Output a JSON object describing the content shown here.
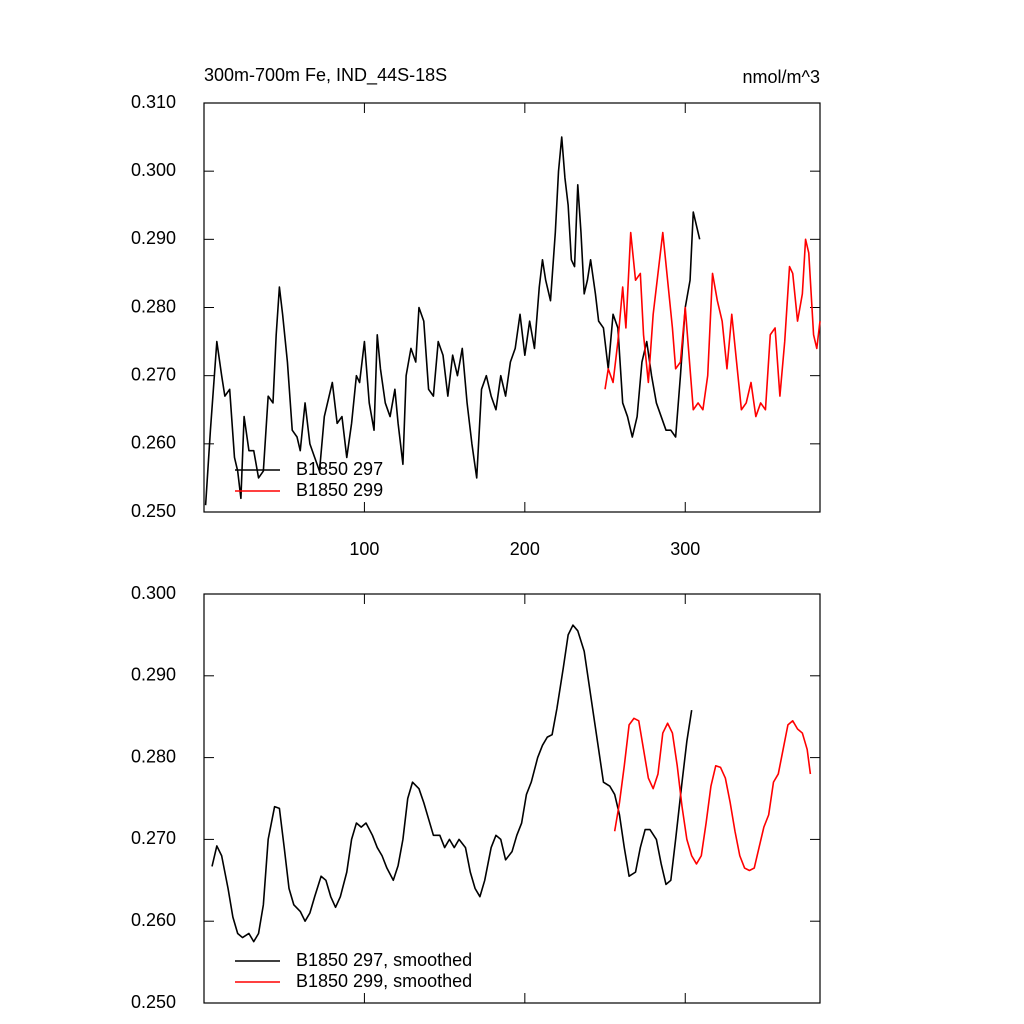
{
  "chart_data": [
    {
      "type": "line",
      "title": "300m-700m Fe, IND_44S-18S",
      "units": "nmol/m^3",
      "xlim": [
        0,
        384
      ],
      "xticks": [
        100,
        200,
        300
      ],
      "ylim": [
        0.25,
        0.31
      ],
      "yticks": [
        {
          "value": 0.25,
          "label": "0.250"
        },
        {
          "value": 0.26,
          "label": "0.260"
        },
        {
          "value": 0.27,
          "label": "0.270"
        },
        {
          "value": 0.28,
          "label": "0.280"
        },
        {
          "value": 0.29,
          "label": "0.290"
        },
        {
          "value": 0.3,
          "label": "0.300"
        },
        {
          "value": 0.31,
          "label": "0.310"
        }
      ],
      "legend": "lower left",
      "series": [
        {
          "name": "B1850 297",
          "color": "#000000",
          "x": [
            1,
            4,
            8,
            11,
            13,
            16,
            19,
            21,
            23,
            25,
            28,
            31,
            34,
            37,
            40,
            43,
            45,
            47,
            49,
            52,
            55,
            58,
            60,
            63,
            66,
            69,
            72,
            75,
            78,
            80,
            83,
            86,
            89,
            92,
            95,
            97,
            100,
            103,
            106,
            108,
            110,
            113,
            116,
            119,
            121,
            124,
            126,
            129,
            132,
            134,
            137,
            140,
            143,
            146,
            149,
            152,
            155,
            158,
            161,
            164,
            167,
            170,
            173,
            176,
            179,
            182,
            185,
            188,
            191,
            194,
            197,
            200,
            203,
            206,
            209,
            211,
            213,
            216,
            219,
            221,
            223,
            225,
            227,
            229,
            231,
            233,
            235,
            237,
            239,
            241,
            244,
            246,
            249,
            252,
            255,
            258,
            261,
            264,
            267,
            270,
            273,
            276,
            279,
            282,
            285,
            288,
            291,
            294,
            297,
            300,
            303,
            305,
            307,
            309
          ],
          "values": [
            0.251,
            0.262,
            0.275,
            0.27,
            0.267,
            0.268,
            0.258,
            0.256,
            0.252,
            0.264,
            0.259,
            0.259,
            0.255,
            0.256,
            0.267,
            0.266,
            0.276,
            0.283,
            0.279,
            0.272,
            0.262,
            0.261,
            0.259,
            0.266,
            0.26,
            0.258,
            0.256,
            0.264,
            0.267,
            0.269,
            0.263,
            0.264,
            0.258,
            0.263,
            0.27,
            0.269,
            0.275,
            0.266,
            0.262,
            0.276,
            0.271,
            0.266,
            0.264,
            0.268,
            0.263,
            0.257,
            0.27,
            0.274,
            0.272,
            0.28,
            0.278,
            0.268,
            0.267,
            0.275,
            0.273,
            0.267,
            0.273,
            0.27,
            0.274,
            0.266,
            0.26,
            0.255,
            0.268,
            0.27,
            0.267,
            0.265,
            0.27,
            0.267,
            0.272,
            0.274,
            0.279,
            0.273,
            0.278,
            0.274,
            0.283,
            0.287,
            0.284,
            0.281,
            0.291,
            0.3,
            0.305,
            0.299,
            0.295,
            0.287,
            0.286,
            0.298,
            0.291,
            0.282,
            0.284,
            0.287,
            0.282,
            0.278,
            0.277,
            0.271,
            0.279,
            0.277,
            0.266,
            0.264,
            0.261,
            0.264,
            0.272,
            0.275,
            0.27,
            0.266,
            0.264,
            0.262,
            0.262,
            0.261,
            0.27,
            0.28,
            0.284,
            0.294,
            0.292,
            0.29
          ]
        },
        {
          "name": "B1850 299",
          "color": "#ff0000",
          "x": [
            250,
            252,
            255,
            258,
            261,
            263,
            266,
            269,
            272,
            274,
            277,
            280,
            283,
            286,
            289,
            292,
            294,
            297,
            300,
            302,
            305,
            308,
            311,
            314,
            317,
            320,
            323,
            326,
            329,
            332,
            335,
            338,
            341,
            344,
            347,
            350,
            353,
            356,
            359,
            362,
            365,
            367,
            370,
            373,
            375,
            377,
            380,
            382,
            384
          ],
          "values": [
            0.268,
            0.271,
            0.269,
            0.275,
            0.283,
            0.277,
            0.291,
            0.284,
            0.285,
            0.276,
            0.269,
            0.279,
            0.285,
            0.291,
            0.284,
            0.277,
            0.271,
            0.272,
            0.28,
            0.274,
            0.265,
            0.266,
            0.265,
            0.27,
            0.285,
            0.281,
            0.278,
            0.271,
            0.279,
            0.272,
            0.265,
            0.266,
            0.269,
            0.264,
            0.266,
            0.265,
            0.276,
            0.277,
            0.267,
            0.275,
            0.286,
            0.285,
            0.278,
            0.282,
            0.29,
            0.288,
            0.276,
            0.274,
            0.278
          ]
        }
      ]
    },
    {
      "type": "line",
      "xlim": [
        0,
        384
      ],
      "ylim": [
        0.25,
        0.3
      ],
      "yticks": [
        {
          "value": 0.25,
          "label": "0.250"
        },
        {
          "value": 0.26,
          "label": "0.260"
        },
        {
          "value": 0.27,
          "label": "0.270"
        },
        {
          "value": 0.28,
          "label": "0.280"
        },
        {
          "value": 0.29,
          "label": "0.290"
        },
        {
          "value": 0.3,
          "label": "0.300"
        }
      ],
      "legend": "lower left",
      "series": [
        {
          "name": "B1850 297, smoothed",
          "color": "#000000",
          "x": [
            5,
            8,
            11,
            15,
            18,
            21,
            24,
            28,
            31,
            34,
            37,
            40,
            44,
            47,
            50,
            53,
            56,
            60,
            63,
            66,
            69,
            73,
            76,
            79,
            82,
            85,
            89,
            92,
            95,
            98,
            101,
            105,
            108,
            111,
            114,
            118,
            121,
            124,
            127,
            130,
            134,
            137,
            140,
            143,
            147,
            150,
            153,
            156,
            159,
            163,
            166,
            169,
            172,
            175,
            179,
            182,
            185,
            188,
            192,
            195,
            198,
            201,
            204,
            208,
            211,
            214,
            217,
            220,
            224,
            227,
            230,
            233,
            237,
            240,
            243,
            246,
            249,
            253,
            256,
            259,
            262,
            265,
            269,
            272,
            275,
            278,
            282,
            285,
            288,
            291,
            294,
            298,
            301,
            304
          ],
          "values": [
            0.2667,
            0.2692,
            0.268,
            0.264,
            0.2605,
            0.2585,
            0.258,
            0.2585,
            0.2575,
            0.2585,
            0.262,
            0.27,
            0.274,
            0.2738,
            0.269,
            0.264,
            0.262,
            0.2612,
            0.26,
            0.261,
            0.263,
            0.2655,
            0.265,
            0.263,
            0.2617,
            0.263,
            0.266,
            0.27,
            0.272,
            0.2715,
            0.272,
            0.2705,
            0.269,
            0.268,
            0.2665,
            0.265,
            0.2668,
            0.27,
            0.275,
            0.277,
            0.2762,
            0.2745,
            0.2725,
            0.2705,
            0.2705,
            0.269,
            0.27,
            0.269,
            0.27,
            0.269,
            0.266,
            0.264,
            0.263,
            0.265,
            0.269,
            0.2705,
            0.27,
            0.2675,
            0.2685,
            0.2705,
            0.272,
            0.2755,
            0.277,
            0.28,
            0.2815,
            0.2825,
            0.2828,
            0.286,
            0.291,
            0.295,
            0.2962,
            0.2955,
            0.293,
            0.289,
            0.285,
            0.281,
            0.277,
            0.2765,
            0.2755,
            0.273,
            0.269,
            0.2655,
            0.266,
            0.269,
            0.2712,
            0.2712,
            0.27,
            0.267,
            0.2645,
            0.265,
            0.27,
            0.277,
            0.282,
            0.2858
          ]
        },
        {
          "name": "B1850 299, smoothed",
          "color": "#ff0000",
          "x": [
            256,
            259,
            262,
            265,
            268,
            271,
            274,
            277,
            280,
            283,
            286,
            289,
            292,
            295,
            298,
            301,
            304,
            307,
            310,
            313,
            316,
            319,
            322,
            325,
            328,
            331,
            334,
            337,
            340,
            343,
            346,
            349,
            352,
            355,
            358,
            361,
            364,
            367,
            370,
            373,
            376,
            378
          ],
          "values": [
            0.271,
            0.2745,
            0.279,
            0.284,
            0.2848,
            0.2845,
            0.281,
            0.2775,
            0.2762,
            0.278,
            0.283,
            0.2842,
            0.283,
            0.279,
            0.274,
            0.27,
            0.268,
            0.267,
            0.268,
            0.272,
            0.2765,
            0.279,
            0.2788,
            0.2775,
            0.2745,
            0.271,
            0.268,
            0.2665,
            0.2662,
            0.2665,
            0.269,
            0.2715,
            0.273,
            0.277,
            0.278,
            0.281,
            0.284,
            0.2845,
            0.2835,
            0.283,
            0.281,
            0.278
          ]
        }
      ]
    }
  ]
}
